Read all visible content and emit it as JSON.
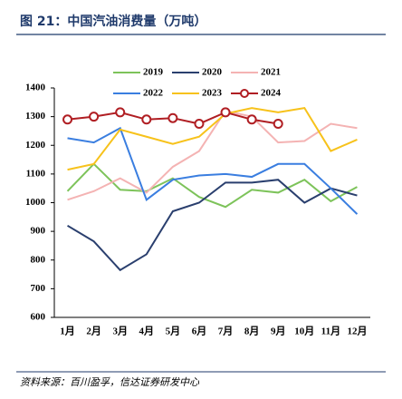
{
  "chart_data": {
    "type": "line",
    "title": "图 21：中国汽油消费量（万吨）",
    "source": "资料来源：百川盈孚，信达证券研发中心",
    "categories": [
      "1月",
      "2月",
      "3月",
      "4月",
      "5月",
      "6月",
      "7月",
      "8月",
      "9月",
      "10月",
      "11月",
      "12月"
    ],
    "ylim": [
      600,
      1400
    ],
    "yticks": [
      600,
      700,
      800,
      900,
      1000,
      1100,
      1200,
      1300,
      1400
    ],
    "grid": false,
    "series": [
      {
        "name": "2019",
        "color": "#7dc35a",
        "values": [
          1040,
          1135,
          1045,
          1040,
          1085,
          1020,
          985,
          1045,
          1035,
          1080,
          1005,
          1055
        ]
      },
      {
        "name": "2020",
        "color": "#2a3f6e",
        "values": [
          920,
          865,
          765,
          820,
          970,
          1000,
          1070,
          1070,
          1080,
          1000,
          1050,
          1025
        ]
      },
      {
        "name": "2021",
        "color": "#f4b3b3",
        "values": [
          1010,
          1040,
          1085,
          1035,
          1125,
          1180,
          1320,
          1300,
          1210,
          1215,
          1275,
          1260
        ]
      },
      {
        "name": "2022",
        "color": "#3a7ee0",
        "values": [
          1225,
          1210,
          1260,
          1010,
          1080,
          1095,
          1100,
          1090,
          1135,
          1135,
          1050,
          960
        ]
      },
      {
        "name": "2023",
        "color": "#f7c21b",
        "values": [
          1115,
          1135,
          1255,
          1230,
          1205,
          1230,
          1310,
          1330,
          1315,
          1330,
          1180,
          1220
        ]
      },
      {
        "name": "2024",
        "color": "#b01e23",
        "markers": true,
        "values": [
          1290,
          1300,
          1315,
          1290,
          1295,
          1275,
          1315,
          1290,
          1275,
          null,
          null,
          null
        ]
      }
    ]
  }
}
